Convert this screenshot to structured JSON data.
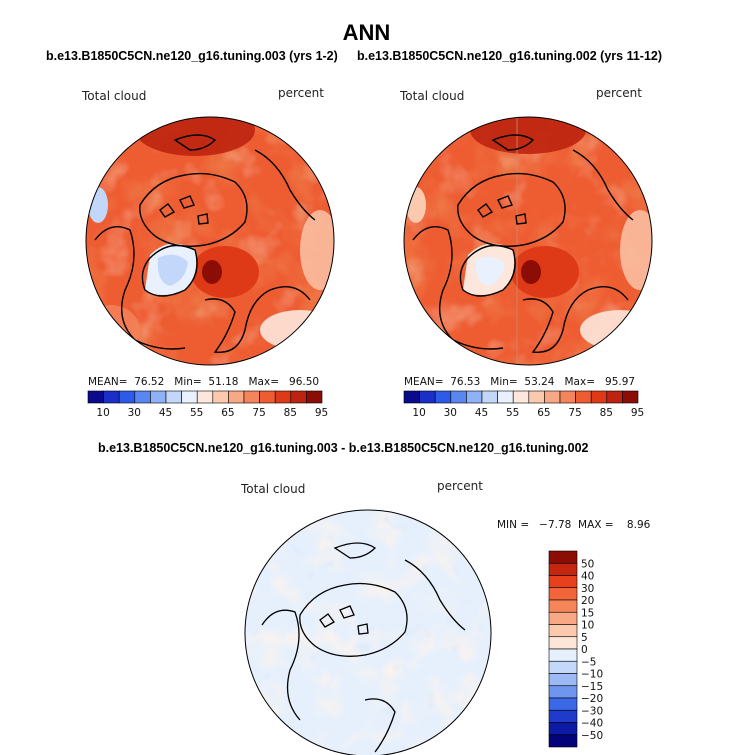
{
  "figure": {
    "title": "ANN",
    "subtitle_left": "b.e13.B1850C5CN.ne120_g16.tuning.003 (yrs 1-2)",
    "subtitle_right": "b.e13.B1850C5CN.ne120_g16.tuning.002 (yrs 11-12)",
    "subtitle_diff": "b.e13.B1850C5CN.ne120_g16.tuning.003 - b.e13.B1850C5CN.ne120_g16.tuning.002"
  },
  "chart_data": [
    {
      "type": "heatmap",
      "projection": "north polar stereographic",
      "field_label": "Total cloud",
      "units": "percent",
      "stats": {
        "mean_label": "MEAN=",
        "mean": "76.52",
        "min_label": "Min=",
        "min": "51.18",
        "max_label": "Max=",
        "max": "96.50"
      },
      "colorbar": {
        "tick_labels": [
          "10",
          "30",
          "45",
          "55",
          "65",
          "75",
          "85",
          "95"
        ],
        "colors": [
          "#0a0a8c",
          "#1a2fc8",
          "#2d5be8",
          "#5a86f2",
          "#8eb1f7",
          "#c2d7fa",
          "#e8f1fd",
          "#fde7dc",
          "#fbc9ae",
          "#f8a884",
          "#f4845c",
          "#ee5c32",
          "#de3a18",
          "#bd2310",
          "#8c0d06"
        ]
      }
    },
    {
      "type": "heatmap",
      "projection": "north polar stereographic",
      "field_label": "Total cloud",
      "units": "percent",
      "stats": {
        "mean_label": "MEAN=",
        "mean": "76.53",
        "min_label": "Min=",
        "min": "53.24",
        "max_label": "Max=",
        "max": "95.97"
      },
      "colorbar": {
        "tick_labels": [
          "10",
          "30",
          "45",
          "55",
          "65",
          "75",
          "85",
          "95"
        ],
        "colors": [
          "#0a0a8c",
          "#1a2fc8",
          "#2d5be8",
          "#5a86f2",
          "#8eb1f7",
          "#c2d7fa",
          "#e8f1fd",
          "#fde7dc",
          "#fbc9ae",
          "#f8a884",
          "#f4845c",
          "#ee5c32",
          "#de3a18",
          "#bd2310",
          "#8c0d06"
        ]
      }
    },
    {
      "type": "heatmap",
      "projection": "north polar stereographic",
      "field_label": "Total cloud",
      "units": "percent",
      "stats": {
        "text": "MIN =   −7.78  MAX =    8.96"
      },
      "colorbar": {
        "tick_labels": [
          "50",
          "40",
          "30",
          "20",
          "15",
          "10",
          "5",
          "0",
          "−5",
          "−10",
          "−15",
          "−20",
          "−30",
          "−40",
          "−50"
        ],
        "colors": [
          "#8c0d06",
          "#c4260f",
          "#e8401c",
          "#f2643a",
          "#f58659",
          "#f8a884",
          "#fbcaae",
          "#fde6d8",
          "#e6f0fc",
          "#c4d8fa",
          "#9cbaf5",
          "#6e96ef",
          "#3a68e6",
          "#1f3bcc",
          "#0c1aa6",
          "#03047a"
        ]
      }
    }
  ]
}
